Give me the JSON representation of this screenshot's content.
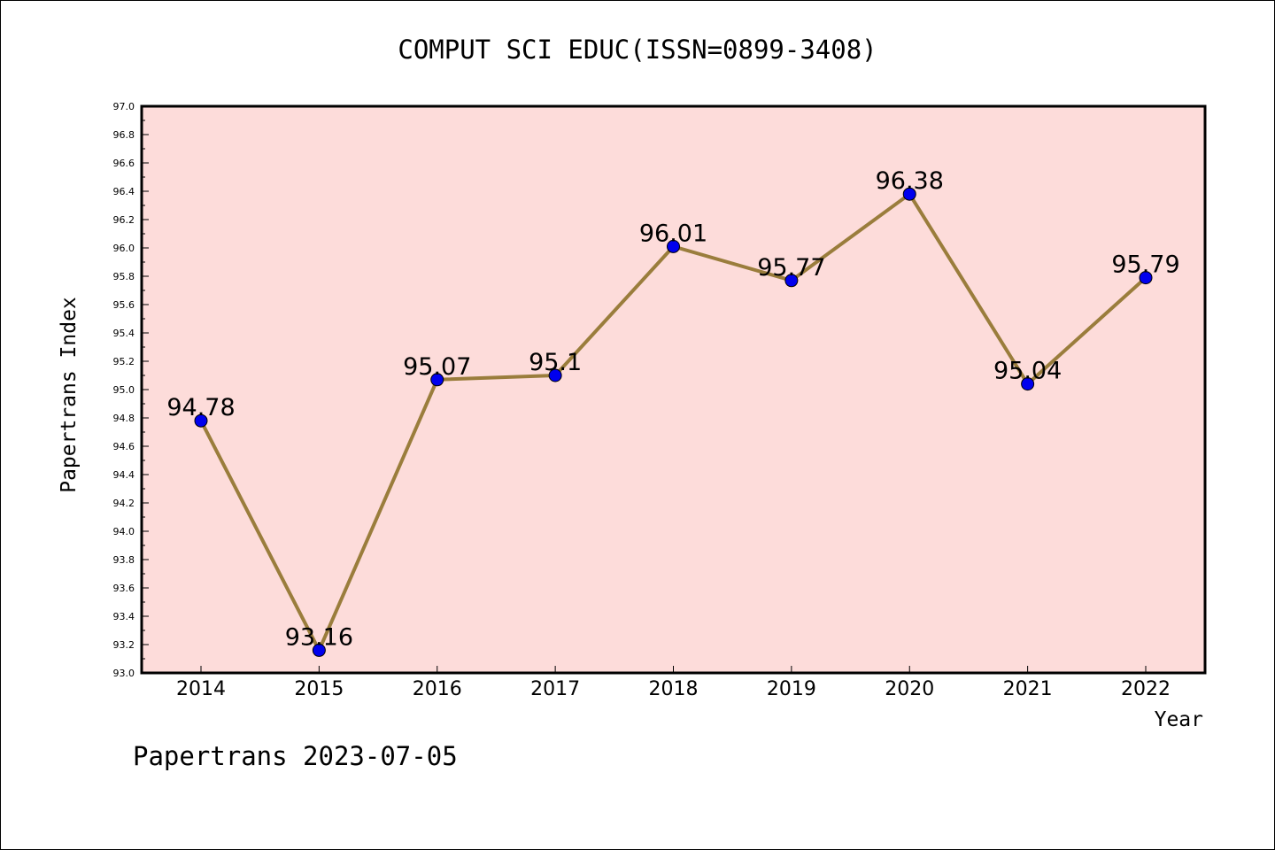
{
  "chart_data": {
    "type": "line",
    "title": "COMPUT SCI EDUC(ISSN=0899-3408)",
    "xlabel": "Year",
    "ylabel": "Papertrans Index",
    "categories": [
      "2014",
      "2015",
      "2016",
      "2017",
      "2018",
      "2019",
      "2020",
      "2021",
      "2022"
    ],
    "values": [
      94.78,
      93.16,
      95.07,
      95.1,
      96.01,
      95.77,
      96.38,
      95.04,
      95.79
    ],
    "data_labels": [
      "94.78",
      "93.16",
      "95.07",
      "95.1",
      "96.01",
      "95.77",
      "96.38",
      "95.04",
      "95.79"
    ],
    "ylim": [
      93.0,
      97.0
    ],
    "yticks": [
      "93.0",
      "93.2",
      "93.4",
      "93.6",
      "93.8",
      "94.0",
      "94.2",
      "94.4",
      "94.6",
      "94.8",
      "95.0",
      "95.2",
      "95.4",
      "95.6",
      "95.8",
      "96.0",
      "96.2",
      "96.4",
      "96.6",
      "96.8",
      "97.0"
    ],
    "grid": false,
    "colors": {
      "plot_background": "#fddcda",
      "line": "#9a7d3c",
      "marker": "#0000ee"
    }
  },
  "footer": {
    "caption": "Papertrans 2023-07-05"
  }
}
